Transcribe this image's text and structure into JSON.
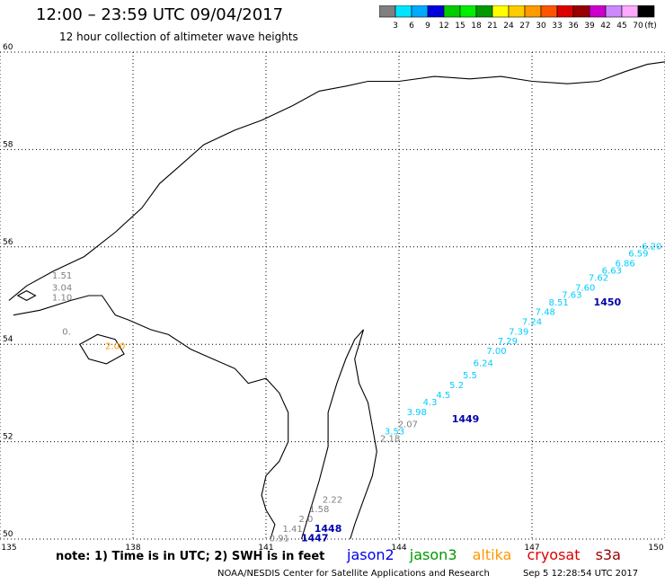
{
  "header": {
    "title": "12:00 – 23:59 UTC 09/04/2017",
    "subtitle": "12 hour collection of altimeter wave heights"
  },
  "colorbar": {
    "labels": [
      "3",
      "6",
      "9",
      "12",
      "15",
      "18",
      "21",
      "24",
      "27",
      "30",
      "33",
      "36",
      "39",
      "42",
      "45",
      "70"
    ],
    "unit": "(ft)",
    "colors": [
      "#808080",
      "#00e5ff",
      "#00aaff",
      "#0000dd",
      "#00cc00",
      "#00ee00",
      "#009900",
      "#ffff00",
      "#ffcc00",
      "#ff9900",
      "#ff5500",
      "#dd0000",
      "#990000",
      "#cc00cc",
      "#cc88ff",
      "#ffaaff",
      "#000000"
    ]
  },
  "chart_data": {
    "type": "scatter",
    "title": "12:00 – 23:59 UTC 09/04/2017",
    "xlim": [
      135,
      150
    ],
    "ylim": [
      50,
      60
    ],
    "x_ticks": [
      "135",
      "138",
      "141",
      "144",
      "147",
      "150"
    ],
    "y_ticks": [
      "50",
      "52",
      "54",
      "56",
      "58",
      "60"
    ],
    "grid": true,
    "series": [
      {
        "name": "jason2",
        "color": "#00ccff",
        "points": [
          {
            "x": 143.9,
            "y": 52.15,
            "label": "3.53"
          },
          {
            "x": 144.4,
            "y": 52.55,
            "label": "3.98"
          },
          {
            "x": 144.7,
            "y": 52.75,
            "label": "4.3"
          },
          {
            "x": 145.0,
            "y": 52.9,
            "label": "4.5"
          },
          {
            "x": 145.3,
            "y": 53.1,
            "label": "5.2"
          },
          {
            "x": 145.6,
            "y": 53.3,
            "label": "5.5"
          },
          {
            "x": 145.9,
            "y": 53.55,
            "label": "6.24"
          },
          {
            "x": 146.2,
            "y": 53.8,
            "label": "7.00"
          },
          {
            "x": 146.45,
            "y": 54.0,
            "label": "7.29"
          },
          {
            "x": 146.7,
            "y": 54.2,
            "label": "7.39"
          },
          {
            "x": 147.0,
            "y": 54.4,
            "label": "7.24"
          },
          {
            "x": 147.3,
            "y": 54.6,
            "label": "7.48"
          },
          {
            "x": 147.6,
            "y": 54.8,
            "label": "8.51"
          },
          {
            "x": 147.9,
            "y": 54.95,
            "label": "7.63"
          },
          {
            "x": 148.2,
            "y": 55.1,
            "label": "7.60"
          },
          {
            "x": 148.5,
            "y": 55.3,
            "label": "7.62"
          },
          {
            "x": 148.8,
            "y": 55.45,
            "label": "6.63"
          },
          {
            "x": 149.1,
            "y": 55.6,
            "label": "6.86"
          },
          {
            "x": 149.4,
            "y": 55.8,
            "label": "6.59"
          },
          {
            "x": 149.7,
            "y": 55.95,
            "label": "6.20"
          }
        ]
      },
      {
        "name": "altika",
        "color": "#ff9900",
        "points": [
          {
            "x": 137.6,
            "y": 53.9,
            "label": "2.00"
          }
        ]
      },
      {
        "name": "other",
        "color": "#808080",
        "points": [
          {
            "x": 136.4,
            "y": 55.35,
            "label": "1.51"
          },
          {
            "x": 136.4,
            "y": 55.1,
            "label": "3.04"
          },
          {
            "x": 136.4,
            "y": 54.9,
            "label": "1.10"
          },
          {
            "x": 136.5,
            "y": 54.2,
            "label": "0."
          },
          {
            "x": 144.2,
            "y": 52.3,
            "label": "2.07"
          },
          {
            "x": 143.8,
            "y": 52.0,
            "label": "2.18"
          },
          {
            "x": 142.5,
            "y": 50.75,
            "label": "2.22"
          },
          {
            "x": 142.2,
            "y": 50.55,
            "label": "1.58"
          },
          {
            "x": 141.9,
            "y": 50.35,
            "label": "2.0"
          },
          {
            "x": 141.6,
            "y": 50.15,
            "label": "1.41"
          },
          {
            "x": 141.3,
            "y": 49.95,
            "label": "0.91"
          }
        ]
      }
    ],
    "pass_labels": [
      {
        "x": 148.7,
        "y": 54.8,
        "label": "1450",
        "color": "#0000aa"
      },
      {
        "x": 145.5,
        "y": 52.4,
        "label": "1449",
        "color": "#0000aa"
      },
      {
        "x": 142.4,
        "y": 50.15,
        "label": "1448",
        "color": "#0000aa"
      },
      {
        "x": 142.1,
        "y": 49.95,
        "label": "1447",
        "color": "#0000aa"
      }
    ]
  },
  "note": "note:  1) Time is in UTC;  2) SWH is in feet",
  "legend": [
    {
      "label": "jason2",
      "color": "#0000ee"
    },
    {
      "label": "jason3",
      "color": "#009900"
    },
    {
      "label": "altika",
      "color": "#ff9900"
    },
    {
      "label": "cryosat",
      "color": "#dd0000"
    },
    {
      "label": "s3a",
      "color": "#990000"
    }
  ],
  "footer": {
    "center": "NOAA/NESDIS Center for Satellite Applications and Research",
    "right": "Sep  5 12:28:54 UTC 2017"
  }
}
